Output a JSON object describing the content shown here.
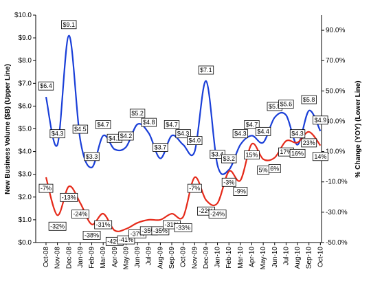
{
  "chart_data": {
    "type": "line",
    "y_label": "New Business Volume ($B) (Upper Line)",
    "y2_label": "% Change (YOY) (Lower Line)",
    "categories": [
      "Oct-08",
      "Nov-08",
      "Dec-08",
      "Jan-09",
      "Feb-09",
      "Mar-09",
      "Apr-09",
      "May-09",
      "Jun-09",
      "Jul-09",
      "Aug-09",
      "Sep-09",
      "Oct-09",
      "Nov-09",
      "Dec-09",
      "Jan-10",
      "Feb-10",
      "Mar-10",
      "Apr-10",
      "May-10",
      "Jun-10",
      "Jul-10",
      "Aug-10",
      "Sep-10",
      "Oct-10"
    ],
    "series": [
      {
        "name": "New Business Volume ($B)",
        "color": "#1a3fd8",
        "axis": "y",
        "values": [
          6.4,
          4.3,
          9.1,
          4.5,
          3.3,
          4.7,
          4.1,
          4.2,
          5.2,
          4.8,
          3.7,
          4.7,
          4.3,
          4.0,
          7.1,
          3.4,
          3.2,
          4.3,
          4.7,
          4.4,
          5.5,
          5.6,
          4.3,
          5.8,
          4.9
        ],
        "value_labels": [
          "$6.4",
          "$4.3",
          "$9.1",
          "$4.5",
          "$3.3",
          "$4.7",
          "$4.1",
          "$4.2",
          "$5.2",
          "$4.8",
          "$3.7",
          "$4.7",
          "$4.3",
          "$4.0",
          "$7.1",
          "$3.4",
          "$3.2",
          "$4.3",
          "$4.7",
          "$4.4",
          "$5.5",
          "$5.6",
          "$4.3",
          "$5.8",
          "$4.9"
        ]
      },
      {
        "name": "% Change (YOY)",
        "color": "#e52a1a",
        "axis": "y2",
        "values": [
          -7,
          -32,
          -13,
          -24,
          -38,
          -31,
          -42,
          -41,
          -37,
          -35,
          -35,
          -31,
          -33,
          -7,
          -22,
          -24,
          -3,
          -9,
          15,
          5,
          6,
          17,
          16,
          23,
          14
        ],
        "value_labels": [
          "-7%",
          "-32%",
          "-13%",
          "-24%",
          "-38%",
          "-31%",
          "-42%",
          "-41%",
          "-37%",
          "-35%",
          "-35%",
          "-31%",
          "-33%",
          "-7%",
          "-22%",
          "-24%",
          "-3%",
          "-9%",
          "15%",
          "5%",
          "6%",
          "17%",
          "16%",
          "23%",
          "14%"
        ]
      }
    ],
    "ylim": [
      0,
      10
    ],
    "yticks": [
      {
        "value": 0,
        "label": "$0.0"
      },
      {
        "value": 1,
        "label": "$1.0"
      },
      {
        "value": 2,
        "label": "$2.0"
      },
      {
        "value": 3,
        "label": "$3.0"
      },
      {
        "value": 4,
        "label": "$4.0"
      },
      {
        "value": 5,
        "label": "$5.0"
      },
      {
        "value": 6,
        "label": "$6.0"
      },
      {
        "value": 7,
        "label": "$7.0"
      },
      {
        "value": 8,
        "label": "$8.0"
      },
      {
        "value": 9,
        "label": "$9.0"
      },
      {
        "value": 10,
        "label": "$10.0"
      }
    ],
    "y2lim": [
      -50,
      100
    ],
    "y2ticks": [
      {
        "value": -50,
        "label": "-50.0%"
      },
      {
        "value": -30,
        "label": "-30.0%"
      },
      {
        "value": -10,
        "label": "-10.0%"
      },
      {
        "value": 10,
        "label": "10.0%"
      },
      {
        "value": 30,
        "label": "30.0%"
      },
      {
        "value": 50,
        "label": "50.0%"
      },
      {
        "value": 70,
        "label": "70.0%"
      },
      {
        "value": 90,
        "label": "90.0%"
      }
    ]
  }
}
